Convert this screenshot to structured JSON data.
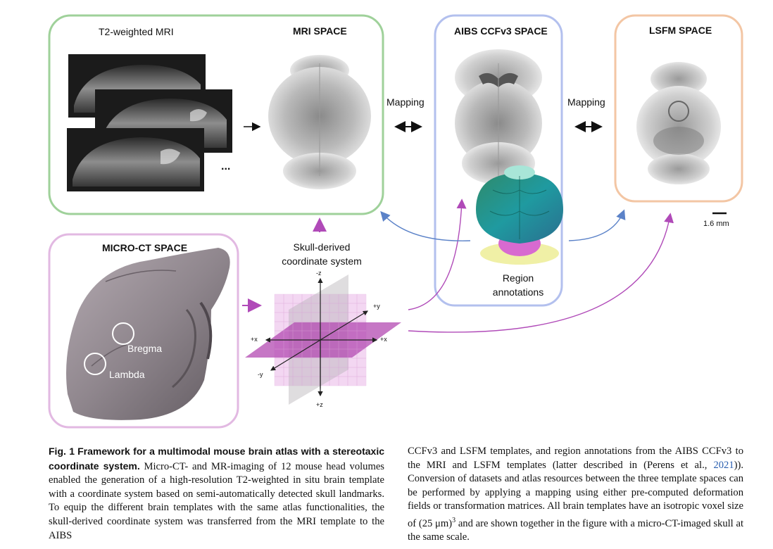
{
  "figure": {
    "mri_panel": {
      "subtitle": "T2-weighted MRI",
      "title": "MRI SPACE",
      "ellipsis": "..."
    },
    "aibs_panel": {
      "title": "AIBS CCFv3 SPACE",
      "annotation_label_line1": "Region",
      "annotation_label_line2": "annotations"
    },
    "lsfm_panel": {
      "title": "LSFM SPACE"
    },
    "microct_panel": {
      "title": "MICRO-CT SPACE",
      "landmark_bregma": "Bregma",
      "landmark_lambda": "Lambda"
    },
    "mapping_left": "Mapping",
    "mapping_right": "Mapping",
    "coordinate_system_line1": "Skull-derived",
    "coordinate_system_line2": "coordinate system",
    "axes": {
      "neg_z": "-z",
      "pos_z": "+z",
      "pos_y": "+y",
      "neg_y": "-y",
      "pos_x_left": "+x",
      "pos_x_right": "+x"
    },
    "scale_bar": "1.6 mm",
    "colors": {
      "mri_border": "#9fd19a",
      "aibs_border": "#b3c0ee",
      "lsfm_border": "#f3c6a4",
      "microct_border": "#e2b9e2",
      "magenta_arrow": "#b04ab8",
      "blue_arrow": "#5b82c8"
    }
  },
  "caption": {
    "fig_label": "Fig. 1",
    "title": "Framework for a multimodal mouse brain atlas with a stereotaxic coordinate system.",
    "left_text_1": "Micro-CT- and MR-imaging of 12 mouse head volumes enabled the generation of a high-resolution T2-weighted in situ brain template with a coordinate system based on semi-automatically detected skull landmarks. To equip the different brain templates with the same atlas functionalities, the skull-derived coordinate system was transferred from the MRI template to the AIBS",
    "right_text_1": "CCFv3 and LSFM templates, and region annotations from the AIBS CCFv3 to the MRI and LSFM templates (latter described in (Perens et al., ",
    "right_ref": "2021",
    "right_text_2": ")). Conversion of datasets and atlas resources between the three template spaces can be performed by applying a mapping using either pre-computed deformation fields or transformation matrices. All brain templates have an isotropic voxel size of (25 μm)",
    "right_sup": "3",
    "right_text_3": " and are shown together in the figure with a micro-CT-imaged skull at the same scale."
  }
}
